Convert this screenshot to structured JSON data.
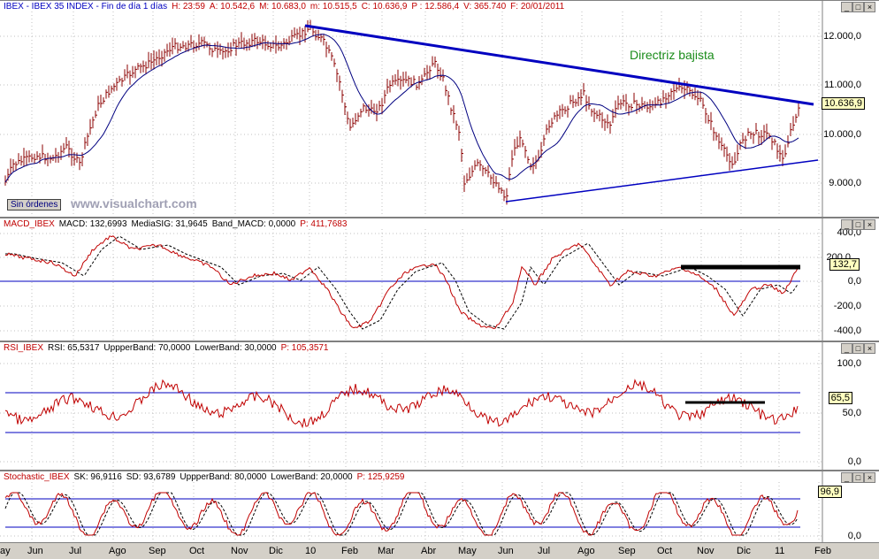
{
  "main": {
    "header": [
      {
        "text": "IBEX - IBEX 35 INDEX - Fin de día 1 días",
        "color": "#0000c0"
      },
      {
        "text": "H: 23:59",
        "color": "#c00000"
      },
      {
        "text": "A: 10.542,6",
        "color": "#c00000"
      },
      {
        "text": "M: 10.683,0",
        "color": "#c00000"
      },
      {
        "text": "m: 10.515,5",
        "color": "#c00000"
      },
      {
        "text": "C: 10.636,9",
        "color": "#c00000"
      },
      {
        "text": "P : 12.586,4",
        "color": "#c00000"
      },
      {
        "text": "V: 365.740",
        "color": "#c00000"
      },
      {
        "text": "F: 20/01/2011",
        "color": "#c00000"
      }
    ],
    "y_labels": [
      "12.000,0",
      "11.000,0",
      "10.000,0",
      "9.000,0"
    ],
    "current_value": "10.636,9",
    "annotation": "Directriz bajista",
    "watermark": "www.visualchart.com",
    "orders_button": "Sin órdenes"
  },
  "macd": {
    "header": [
      {
        "text": "MACD_IBEX",
        "color": "#c00000"
      },
      {
        "text": "MACD: 132,6993",
        "color": "#000000"
      },
      {
        "text": "MediaSIG: 31,9645",
        "color": "#000000"
      },
      {
        "text": "Band_MACD: 0,0000",
        "color": "#000000"
      },
      {
        "text": "P: 411,7683",
        "color": "#c00000"
      }
    ],
    "y_labels": [
      "400,0",
      "200,0",
      "0,0",
      "-200,0",
      "-400,0"
    ],
    "current_value": "132,7"
  },
  "rsi": {
    "header": [
      {
        "text": "RSI_IBEX",
        "color": "#c00000"
      },
      {
        "text": "RSI: 65,5317",
        "color": "#000000"
      },
      {
        "text": "UppperBand: 70,0000",
        "color": "#000000"
      },
      {
        "text": "LowerBand: 30,0000",
        "color": "#000000"
      },
      {
        "text": "P: 105,3571",
        "color": "#c00000"
      }
    ],
    "y_labels": [
      "100,0",
      "50,0",
      "0,0"
    ],
    "current_value": "65,5"
  },
  "stoch": {
    "header": [
      {
        "text": "Stochastic_IBEX",
        "color": "#c00000"
      },
      {
        "text": "SK: 96,9116",
        "color": "#000000"
      },
      {
        "text": "SD: 93,6789",
        "color": "#000000"
      },
      {
        "text": "UppperBand: 80,0000",
        "color": "#000000"
      },
      {
        "text": "LowerBand: 20,0000",
        "color": "#000000"
      },
      {
        "text": "P: 125,9259",
        "color": "#c00000"
      }
    ],
    "y_labels": [
      "0,0"
    ],
    "current_value": "96,9"
  },
  "x_axis": [
    "Jun",
    "Jul",
    "Ago",
    "Sep",
    "Oct",
    "Nov",
    "Dic",
    "10",
    "Feb",
    "Mar",
    "Abr",
    "May",
    "Jun",
    "Jul",
    "Ago",
    "Sep",
    "Oct",
    "Nov",
    "Dic",
    "11",
    "Feb"
  ],
  "x_axis_partial_left": "ay",
  "window_buttons": [
    "_",
    "□",
    "×"
  ],
  "colors": {
    "price": "#8b0000",
    "ma": "#000080",
    "trend": "#0000c0",
    "indicator": "#c00000"
  }
}
